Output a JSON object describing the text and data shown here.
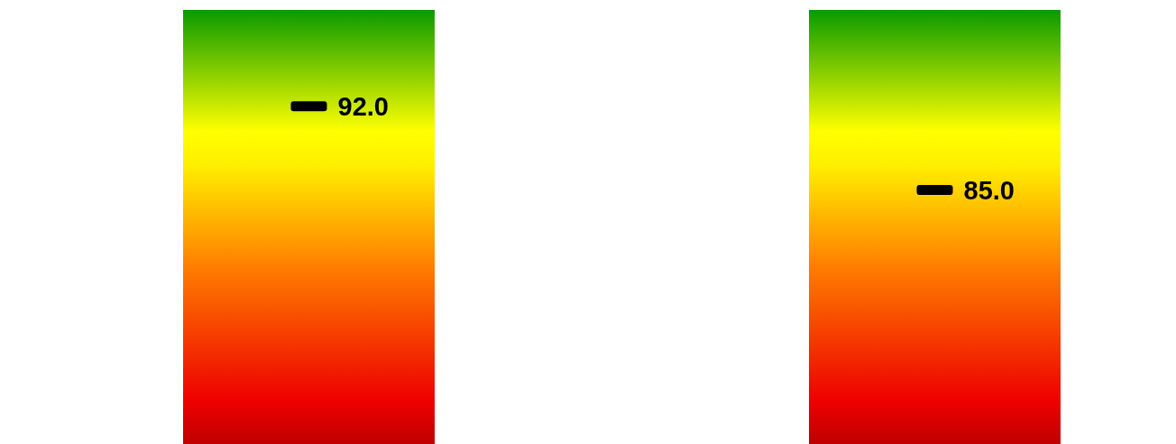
{
  "chart_data": {
    "type": "other",
    "categories": [
      null,
      null
    ],
    "series": [
      {
        "color": "#000000",
        "values": [
          92.0,
          85.0
        ],
        "value_labels": [
          "92.0",
          "85.0"
        ]
      }
    ]
  }
}
